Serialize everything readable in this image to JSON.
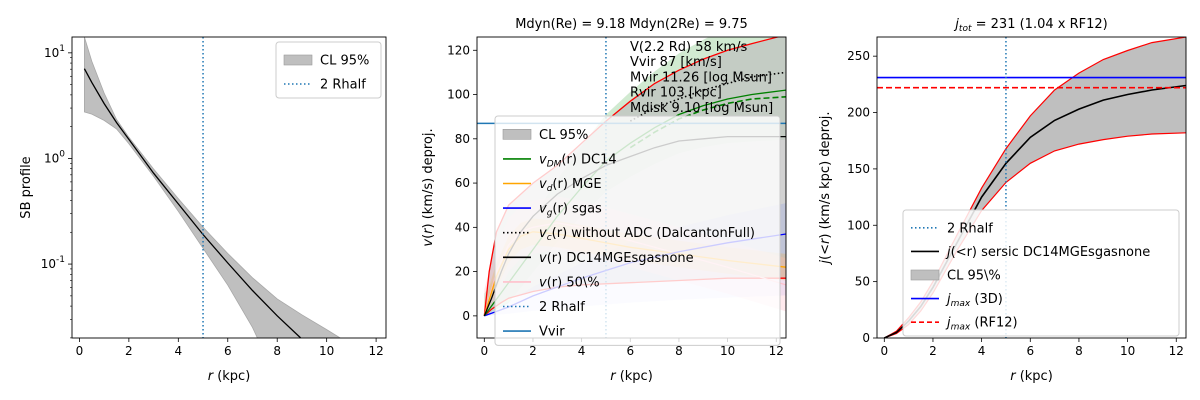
{
  "chart_data": [
    {
      "type": "area",
      "title": "",
      "xlabel": "r (kpc)",
      "ylabel": "SB profile",
      "xlim": [
        -0.3,
        12.4
      ],
      "ylim_log10": [
        -1.7,
        1.15
      ],
      "yscale": "log",
      "xticks": [
        0,
        2,
        4,
        6,
        8,
        10,
        12
      ],
      "yticks": [
        {
          "exp": -1,
          "label": "10^-1"
        },
        {
          "exp": 0,
          "label": "10^0"
        },
        {
          "exp": 1,
          "label": "10^1"
        }
      ],
      "legend_position": "top-right",
      "legend": [
        {
          "label": "CL 95%",
          "kind": "band",
          "color": "#bfbfbf"
        },
        {
          "label": "2 Rhalf",
          "kind": "dotted",
          "color": "#1f77b4"
        }
      ],
      "vline_x": 5.0,
      "series": [
        {
          "name": "median",
          "color": "#000000",
          "x": [
            0.2,
            0.5,
            1,
            1.5,
            2,
            3,
            4,
            5,
            6,
            7,
            8,
            8.95
          ],
          "log10_y": [
            0.85,
            0.72,
            0.52,
            0.34,
            0.18,
            -0.14,
            -0.43,
            -0.72,
            -0.99,
            -1.25,
            -1.49,
            -1.7
          ]
        },
        {
          "name": "ci_upper",
          "color": "#bfbfbf",
          "x": [
            0.2,
            0.5,
            1,
            1.5,
            2,
            3,
            4,
            5,
            6,
            7,
            8,
            9,
            10,
            10.55
          ],
          "log10_y": [
            1.15,
            0.92,
            0.62,
            0.37,
            0.2,
            -0.1,
            -0.38,
            -0.65,
            -0.9,
            -1.13,
            -1.33,
            -1.48,
            -1.62,
            -1.7
          ]
        },
        {
          "name": "ci_lower",
          "color": "#bfbfbf",
          "x": [
            0.2,
            0.5,
            1,
            1.5,
            2,
            3,
            4,
            5,
            6,
            7,
            7.2
          ],
          "log10_y": [
            0.44,
            0.42,
            0.36,
            0.28,
            0.14,
            -0.17,
            -0.5,
            -0.85,
            -1.2,
            -1.6,
            -1.7
          ]
        }
      ]
    },
    {
      "type": "line",
      "title": "Mdyn(Re) = 9.18  Mdyn(2Re) = 9.75",
      "xlabel": "r (kpc)",
      "ylabel": "v(r) (km/s) deproj.",
      "xlim": [
        -0.3,
        12.4
      ],
      "ylim": [
        -10,
        126
      ],
      "xticks": [
        0,
        2,
        4,
        6,
        8,
        10,
        12
      ],
      "yticks": [
        0,
        20,
        40,
        60,
        80,
        100,
        120
      ],
      "legend_position": "lower-center",
      "legend": [
        {
          "label": "CL 95%",
          "kind": "band",
          "color": "#bfbfbf"
        },
        {
          "label": "v_DM(r) DC14",
          "kind": "solid",
          "color": "#008000"
        },
        {
          "label": "v_d(r) MGE",
          "kind": "solid",
          "color": "#ffa500"
        },
        {
          "label": "v_g(r) sgas",
          "kind": "solid",
          "color": "#0000ff"
        },
        {
          "label": "v_c(r) without ADC (DalcantonFull)",
          "kind": "dotted",
          "color": "#000000"
        },
        {
          "label": "v(r) DC14MGEsgasnone",
          "kind": "solid",
          "color": "#000000"
        },
        {
          "label": "v(r) 50\\%",
          "kind": "solid",
          "color": "#ffc0cb"
        },
        {
          "label": "2 Rhalf",
          "kind": "dotted",
          "color": "#1f77b4"
        },
        {
          "label": "Vvir",
          "kind": "solid",
          "color": "#1f77b4"
        }
      ],
      "annotations": [
        "V(2.2 Rd) 58 km/s",
        "Vvir 87 [km/s]",
        "Mvir 11.26 [log Msun]",
        "Rvir 103 [kpc]",
        "Mdisk 9.10 [log Msun]"
      ],
      "vline_x": 5.0,
      "hline_y": 87,
      "series": [
        {
          "name": "v_total",
          "color": "#000000",
          "x": [
            0,
            0.3,
            0.7,
            1,
            1.5,
            2,
            3,
            4,
            5,
            6,
            7,
            8,
            9,
            10,
            11,
            12.4
          ],
          "y": [
            0,
            8,
            20,
            28,
            38,
            45,
            55,
            62,
            68,
            72,
            76,
            79,
            80,
            81,
            81,
            81
          ]
        },
        {
          "name": "v_total_upper",
          "color": "#ff0000",
          "x": [
            0,
            0.2,
            0.5,
            1,
            2,
            3,
            4,
            5,
            6,
            7,
            8,
            9,
            10,
            11,
            12.4
          ],
          "y": [
            0,
            20,
            38,
            50,
            60,
            68,
            78,
            88,
            97,
            105,
            111,
            116,
            120,
            123,
            127
          ]
        },
        {
          "name": "v_total_lower",
          "color": "#ff0000",
          "x": [
            0,
            0.3,
            0.7,
            1,
            2,
            3,
            4,
            6,
            8,
            10,
            12.4
          ],
          "y": [
            0,
            3,
            6,
            8,
            11,
            13,
            14,
            15,
            16,
            17,
            17
          ]
        },
        {
          "name": "v_DM",
          "color": "#008000",
          "x": [
            0,
            1,
            2,
            3,
            4,
            5,
            6,
            7,
            8,
            9,
            10,
            11,
            12.4
          ],
          "y": [
            0,
            15,
            30,
            45,
            58,
            70,
            78,
            85,
            91,
            95,
            98,
            100,
            102
          ]
        },
        {
          "name": "v_DM_dashed",
          "color": "#008000",
          "x": [
            6,
            7,
            8,
            9,
            10,
            11,
            12.4
          ],
          "y": [
            76,
            83,
            89,
            93,
            96,
            98,
            99
          ]
        },
        {
          "name": "v_c_noADC",
          "color": "#000000",
          "x": [
            6,
            7,
            8,
            9,
            10,
            11,
            12.4
          ],
          "y": [
            88,
            94,
            98,
            102,
            105,
            108,
            110
          ]
        },
        {
          "name": "v_gas",
          "color": "#0000ff",
          "x": [
            0,
            1,
            2,
            4,
            6,
            8,
            10,
            12.4
          ],
          "y": [
            0,
            4,
            9,
            17,
            24,
            29,
            33,
            37
          ]
        },
        {
          "name": "v_disk",
          "color": "#ffa500",
          "x": [
            0,
            0.5,
            1,
            1.5,
            2,
            3,
            4,
            6,
            8,
            10,
            12.4
          ],
          "y": [
            0,
            18,
            30,
            36,
            38,
            37,
            35,
            31,
            28,
            25,
            22
          ]
        },
        {
          "name": "v_50",
          "color": "#ffc0cb",
          "x": [
            0,
            0.5,
            1,
            1.5,
            2,
            3,
            4,
            5,
            6,
            7,
            8,
            10,
            12.4
          ],
          "y": [
            0,
            20,
            32,
            38,
            40,
            42,
            40,
            37,
            34,
            31,
            28,
            22,
            14
          ]
        }
      ]
    },
    {
      "type": "area",
      "title": "j_tot = 231 (1.04 x RF12)",
      "xlabel": "r (kpc)",
      "ylabel": "j(<r) (km/s kpc) deproj.",
      "xlim": [
        -0.3,
        12.4
      ],
      "ylim": [
        0,
        267
      ],
      "xticks": [
        0,
        2,
        4,
        6,
        8,
        10,
        12
      ],
      "yticks": [
        0,
        50,
        100,
        150,
        200,
        250
      ],
      "legend_position": "lower-right",
      "legend": [
        {
          "label": "2 Rhalf",
          "kind": "dotted",
          "color": "#1f77b4"
        },
        {
          "label": "j(<r) sersic DC14MGEsgasnone",
          "kind": "solid",
          "color": "#000000"
        },
        {
          "label": "CL 95\\%",
          "kind": "band",
          "color": "#bfbfbf"
        },
        {
          "label": "j_max (3D)",
          "kind": "solid",
          "color": "#0000ff"
        },
        {
          "label": "j_max (RF12)",
          "kind": "dashed",
          "color": "#ff0000"
        }
      ],
      "vline_x": 5.0,
      "hlines": [
        {
          "name": "j_max_3D",
          "y": 231,
          "color": "#0000ff"
        },
        {
          "name": "j_max_RF12",
          "y": 222,
          "color": "#ff0000"
        }
      ],
      "series": [
        {
          "name": "j_median",
          "color": "#000000",
          "x": [
            0,
            0.5,
            1,
            1.5,
            2,
            3,
            4,
            5,
            6,
            7,
            8,
            9,
            10,
            11,
            12.4
          ],
          "y": [
            0,
            5,
            15,
            28,
            45,
            85,
            125,
            155,
            178,
            193,
            203,
            211,
            216,
            220,
            224
          ]
        },
        {
          "name": "j_upper",
          "color": "#ff0000",
          "x": [
            0,
            0.5,
            1,
            1.5,
            2,
            3,
            4,
            5,
            6,
            7,
            8,
            9,
            10,
            11,
            12.4
          ],
          "y": [
            0,
            6,
            18,
            32,
            50,
            92,
            133,
            168,
            197,
            220,
            235,
            247,
            255,
            262,
            267
          ]
        },
        {
          "name": "j_lower",
          "color": "#ff0000",
          "x": [
            0,
            0.5,
            1,
            1.5,
            2,
            3,
            4,
            5,
            6,
            7,
            8,
            9,
            10,
            11,
            12.4
          ],
          "y": [
            0,
            4,
            12,
            24,
            40,
            78,
            113,
            138,
            155,
            166,
            172,
            176,
            179,
            181,
            182
          ]
        }
      ]
    }
  ]
}
